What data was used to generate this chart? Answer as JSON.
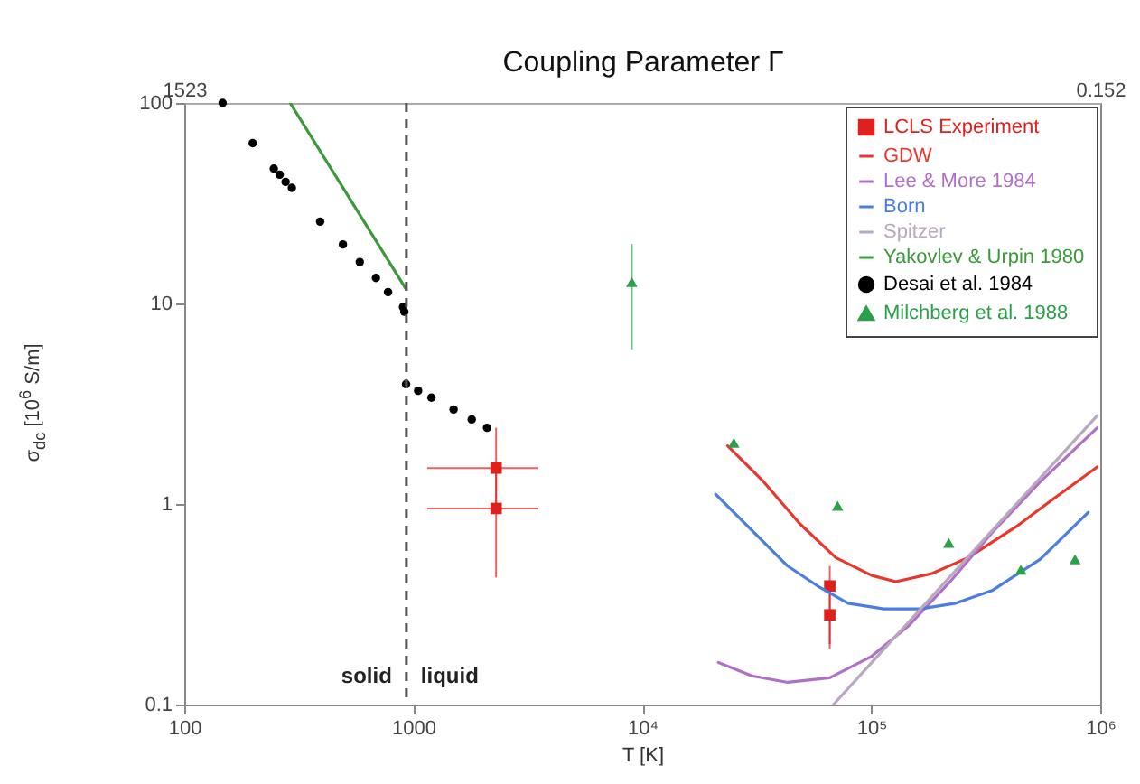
{
  "chart_data": {
    "type": "line",
    "x2label": "Coupling Parameter Γ",
    "xlabel": "T [K]",
    "ylabel": "σ$_{dc}$ [10$^{6}$ S/m]",
    "log": "xy",
    "legend": "top right",
    "xlim": [
      100,
      1000000
    ],
    "xticks": [
      100,
      1000,
      {
        "value": 10000,
        "label": "10⁴"
      },
      {
        "value": 100000,
        "label": "10⁵"
      },
      {
        "value": 1000000,
        "label": "10⁶"
      }
    ],
    "ylim": [
      0.1,
      100
    ],
    "yticks": [
      0.1,
      1,
      10,
      100
    ],
    "x2lim": [
      1523,
      0.152
    ],
    "x2ticks": [
      1523,
      0.152
    ],
    "ref_lines": [
      {
        "axis": "x",
        "value": 933,
        "color": "#555555",
        "line_style": "dashed"
      }
    ],
    "annotations": [
      "solid",
      "liquid"
    ],
    "series": [
      {
        "name": "LCLS Experiment",
        "type": "scatter",
        "marker": "square",
        "color": "#e0201c",
        "x": [
          2300,
          2300,
          65900,
          65900
        ],
        "values": [
          1.51,
          0.95,
          0.39,
          0.28
        ],
        "errors": [
          [
            1.0,
            2.4
          ],
          [
            0.43,
            1.51
          ],
          [
            0.2,
            0.49
          ],
          [
            0.19,
            0.39
          ]
        ],
        "xerrors": [
          [
            1150,
            3520
          ],
          [
            1150,
            3520
          ],
          null,
          null
        ]
      },
      {
        "name": "GDW",
        "color": "#e8382e",
        "x": [
          23600,
          33900,
          48600,
          70000,
          100500,
          128000,
          184000,
          265000,
          429000,
          617000,
          970000
        ],
        "values": [
          1.95,
          1.29,
          0.8,
          0.54,
          0.44,
          0.41,
          0.45,
          0.54,
          0.77,
          1.05,
          1.53
        ]
      },
      {
        "name": "Lee & More 1984",
        "color": "#b070c8",
        "x": [
          21500,
          30100,
          43200,
          65900,
          100500,
          144500,
          221000,
          337000,
          547000,
          970000
        ],
        "values": [
          0.162,
          0.139,
          0.129,
          0.136,
          0.174,
          0.245,
          0.41,
          0.72,
          1.29,
          2.4
        ]
      },
      {
        "name": "Born",
        "color": "#4a7fe0",
        "x": [
          20900,
          30100,
          43200,
          58300,
          79100,
          113500,
          163000,
          234000,
          337000,
          547000,
          887000
        ],
        "values": [
          1.12,
          0.74,
          0.49,
          0.39,
          0.32,
          0.3,
          0.3,
          0.32,
          0.37,
          0.53,
          0.91
        ]
      },
      {
        "name": "Spitzer",
        "color": "#b8a8c0",
        "x": [
          68400,
          257000,
          970000
        ],
        "values": [
          0.1,
          0.525,
          2.76
        ]
      },
      {
        "name": "Yakovlev & Urpin 1980",
        "color": "#3a9a3a",
        "x": [
          290,
          930
        ],
        "values": [
          100,
          11.8
        ]
      },
      {
        "name": "Desai et al. 1984",
        "type": "scatter",
        "marker": "circle",
        "color": "#000000",
        "x": [
          147,
          199,
          246,
          261,
          277,
          295,
          392,
          493,
          584,
          687,
          776,
          902,
          914,
          930,
          1050,
          1200,
          1500,
          1800,
          2100
        ],
        "values": [
          100,
          63,
          47,
          43.9,
          40.4,
          37.7,
          25.6,
          19.7,
          16.1,
          13.4,
          11.4,
          9.6,
          9.1,
          3.96,
          3.67,
          3.39,
          2.96,
          2.64,
          2.4
        ]
      },
      {
        "name": "Milchberg et al. 1988",
        "type": "scatter",
        "marker": "triangle",
        "color": "#2aa04a",
        "x": [
          9000,
          25100,
          71300,
          218000,
          450000,
          776000
        ],
        "values": [
          12.8,
          2.02,
          0.98,
          0.64,
          0.47,
          0.53
        ],
        "errors": [
          [
            5.9,
            19.8
          ],
          null,
          null,
          null,
          null,
          null
        ]
      }
    ]
  }
}
